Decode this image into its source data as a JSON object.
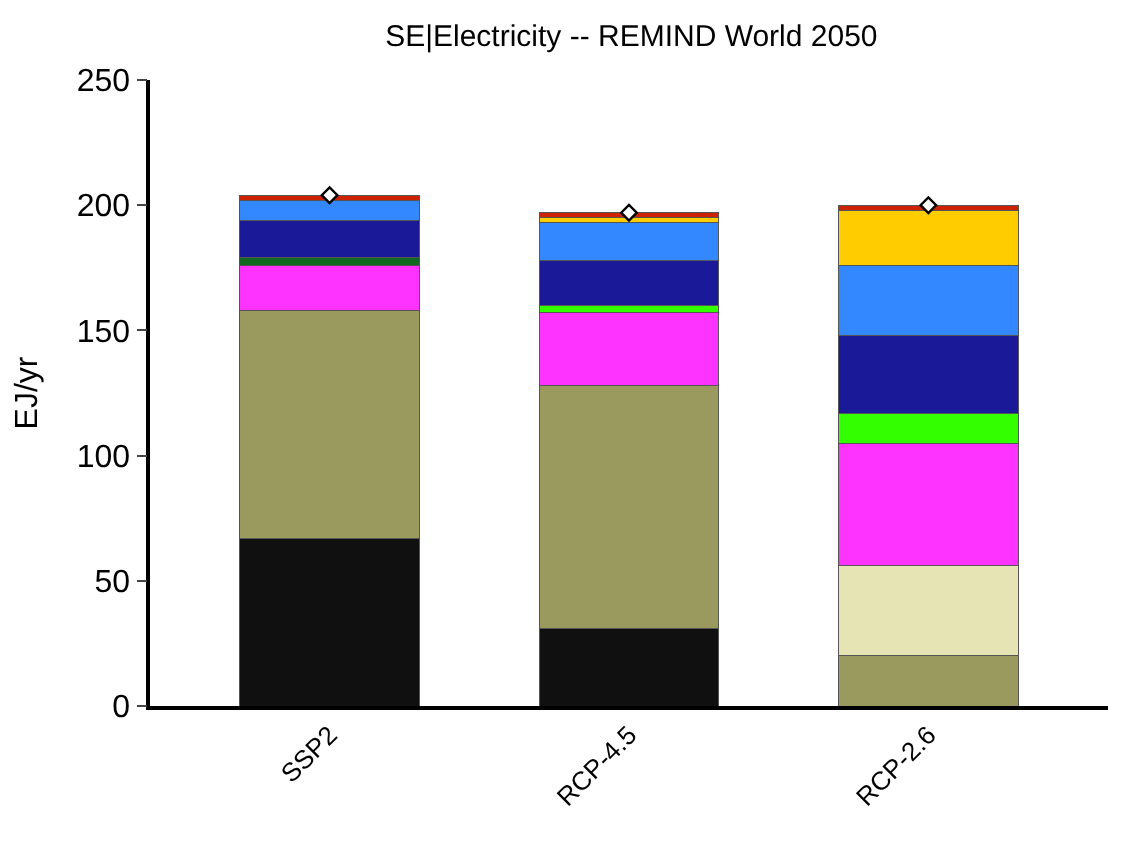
{
  "chart_data": {
    "type": "bar",
    "stacked": true,
    "title": "SE|Electricity -- REMIND World 2050",
    "ylabel": "EJ/yr",
    "categories": [
      "SSP2",
      "RCP-4.5",
      "RCP-2.6"
    ],
    "series": [
      {
        "color": "#101010",
        "values": [
          67,
          31,
          0
        ]
      },
      {
        "color": "#9b9a5e",
        "values": [
          91,
          97,
          20
        ]
      },
      {
        "color": "#e6e4b4",
        "values": [
          0,
          0,
          36
        ]
      },
      {
        "color": "#ff33ff",
        "values": [
          18,
          29,
          49
        ]
      },
      {
        "color": "#116622",
        "values": [
          3,
          0,
          0
        ]
      },
      {
        "color": "#33ff00",
        "values": [
          0,
          3,
          12
        ]
      },
      {
        "color": "#1a1a99",
        "values": [
          15,
          18,
          31
        ]
      },
      {
        "color": "#3388ff",
        "values": [
          8,
          15,
          28
        ]
      },
      {
        "color": "#ffcc00",
        "values": [
          0,
          2,
          22
        ]
      },
      {
        "color": "#cc2200",
        "values": [
          2,
          2,
          2
        ]
      },
      {
        "type": "scatter",
        "marker": "diamond",
        "color": "#000000",
        "x": [
          "SSP2",
          "RCP-4.5",
          "RCP-2.6"
        ],
        "values": [
          204,
          197,
          200
        ]
      }
    ],
    "ylim": [
      0,
      250
    ],
    "yticks": [
      0,
      50,
      100,
      150,
      200,
      250
    ]
  }
}
